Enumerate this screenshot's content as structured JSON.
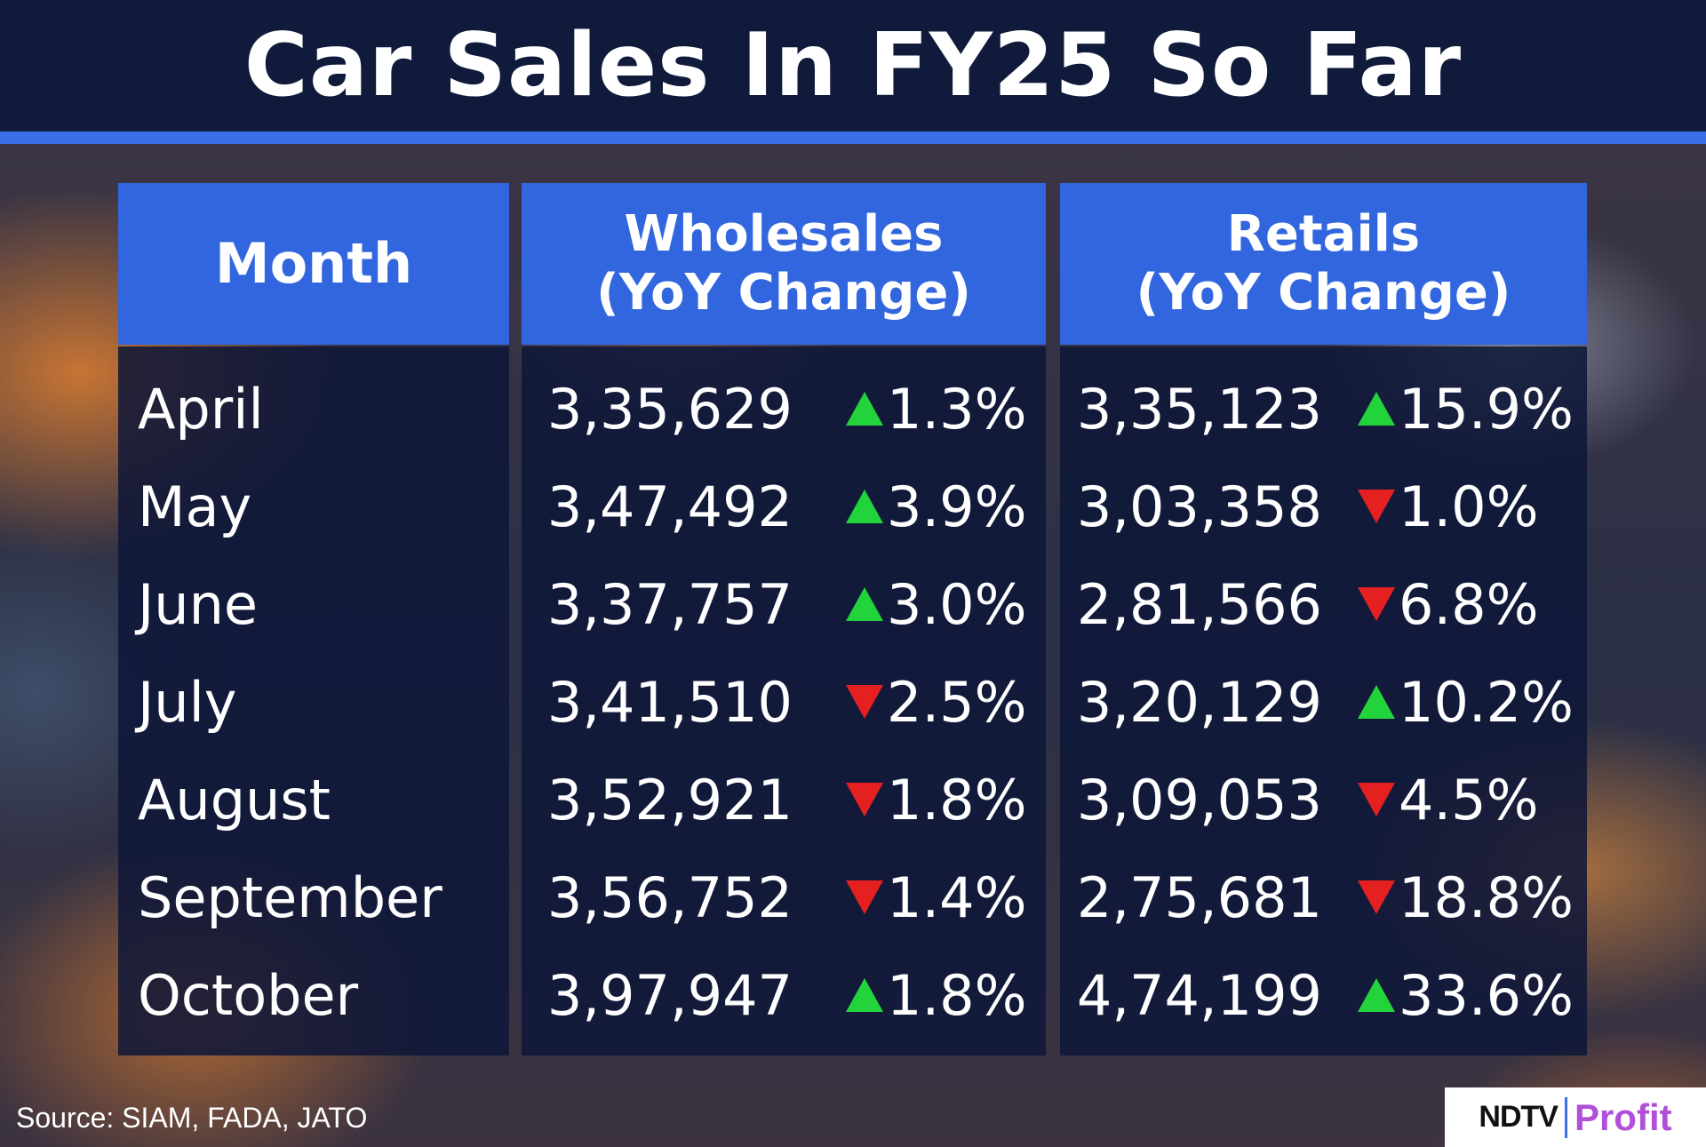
{
  "title": "Car Sales In FY25 So Far",
  "headers": {
    "month": "Month",
    "wholesales_line1": "Wholesales",
    "wholesales_line2": "(YoY Change)",
    "retails_line1": "Retails",
    "retails_line2": "(YoY Change)"
  },
  "chart_data": {
    "type": "table",
    "title": "Car Sales In FY25 So Far",
    "columns": [
      "Month",
      "Wholesales (YoY Change)",
      "Retails (YoY Change)"
    ],
    "rows": [
      {
        "month": "April",
        "wholesales": "3,35,629",
        "wholesales_change": "1.3%",
        "wholesales_dir": "up",
        "retails": "3,35,123",
        "retails_change": "15.9%",
        "retails_dir": "up"
      },
      {
        "month": "May",
        "wholesales": "3,47,492",
        "wholesales_change": "3.9%",
        "wholesales_dir": "up",
        "retails": "3,03,358",
        "retails_change": "1.0%",
        "retails_dir": "down"
      },
      {
        "month": "June",
        "wholesales": "3,37,757",
        "wholesales_change": "3.0%",
        "wholesales_dir": "up",
        "retails": "2,81,566",
        "retails_change": "6.8%",
        "retails_dir": "down"
      },
      {
        "month": "July",
        "wholesales": "3,41,510",
        "wholesales_change": "2.5%",
        "wholesales_dir": "down",
        "retails": "3,20,129",
        "retails_change": "10.2%",
        "retails_dir": "up"
      },
      {
        "month": "August",
        "wholesales": "3,52,921",
        "wholesales_change": "1.8%",
        "wholesales_dir": "down",
        "retails": "3,09,053",
        "retails_change": "4.5%",
        "retails_dir": "down"
      },
      {
        "month": "September",
        "wholesales": "3,56,752",
        "wholesales_change": "1.4%",
        "wholesales_dir": "down",
        "retails": "2,75,681",
        "retails_change": "18.8%",
        "retails_dir": "down"
      },
      {
        "month": "October",
        "wholesales": "3,97,947",
        "wholesales_change": "1.8%",
        "wholesales_dir": "up",
        "retails": "4,74,199",
        "retails_change": "33.6%",
        "retails_dir": "up"
      }
    ]
  },
  "source": "Source: SIAM, FADA, JATO",
  "logo": {
    "brand": "NDTV",
    "product": "Profit"
  },
  "colors": {
    "up": "#22d33c",
    "down": "#e52020",
    "header": "#3266df",
    "title_bg": "#101a3b"
  }
}
